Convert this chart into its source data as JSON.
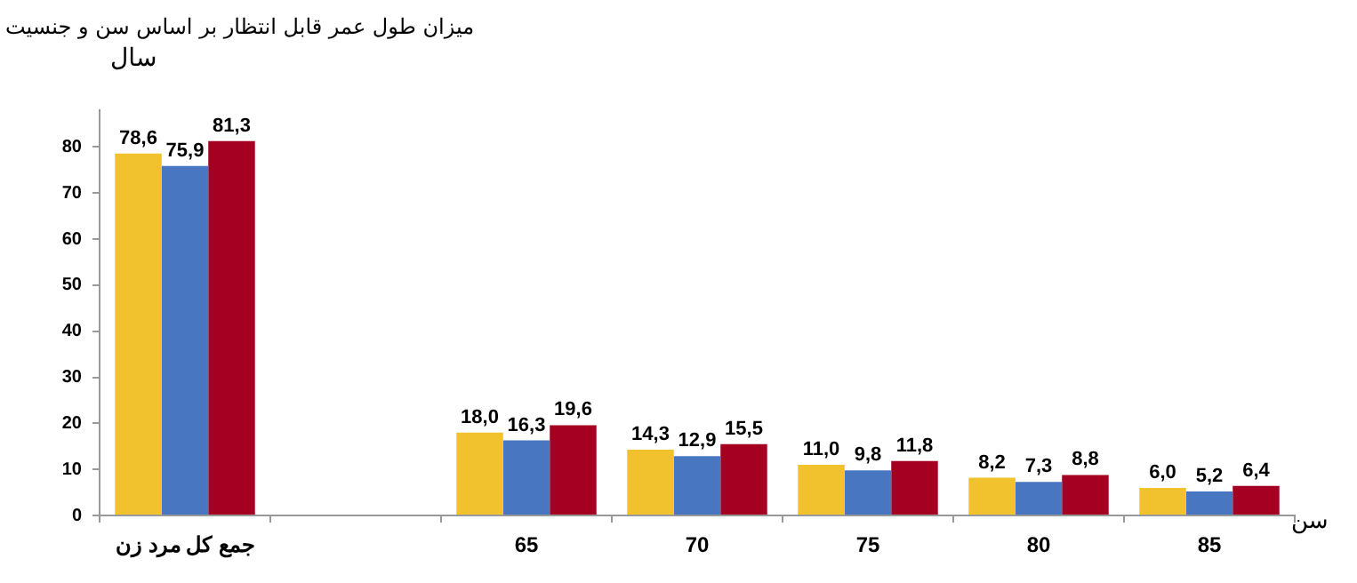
{
  "chart_data": {
    "type": "bar",
    "title": "میزان طول عمر قابل انتظار بر اساس سن و جنسیت",
    "ylabel": "سال",
    "xlabel": "سن",
    "categories": [
      "جمع کل مرد زن",
      null,
      "65",
      "70",
      "75",
      "80",
      "85"
    ],
    "series": [
      {
        "color": "#f2c12e",
        "values": [
          78.6,
          null,
          18.0,
          14.3,
          11.0,
          8.2,
          6.0
        ],
        "value_labels": [
          "78,6",
          null,
          "18,0",
          "14,3",
          "11,0",
          "8,2",
          "6,0"
        ]
      },
      {
        "color": "#4876c0",
        "values": [
          75.9,
          null,
          16.3,
          12.9,
          9.8,
          7.3,
          5.2
        ],
        "value_labels": [
          "75,9",
          null,
          "16,3",
          "12,9",
          "9,8",
          "7,3",
          "5,2"
        ]
      },
      {
        "color": "#a50021",
        "values": [
          81.3,
          null,
          19.6,
          15.5,
          11.8,
          8.8,
          6.4
        ],
        "value_labels": [
          "81,3",
          null,
          "19,6",
          "15,5",
          "11,8",
          "8,8",
          "6,4"
        ]
      }
    ],
    "ylim": [
      0,
      88
    ],
    "yticks": [
      0,
      10,
      20,
      30,
      40,
      50,
      60,
      70,
      80
    ],
    "grid": false,
    "legend": false
  }
}
